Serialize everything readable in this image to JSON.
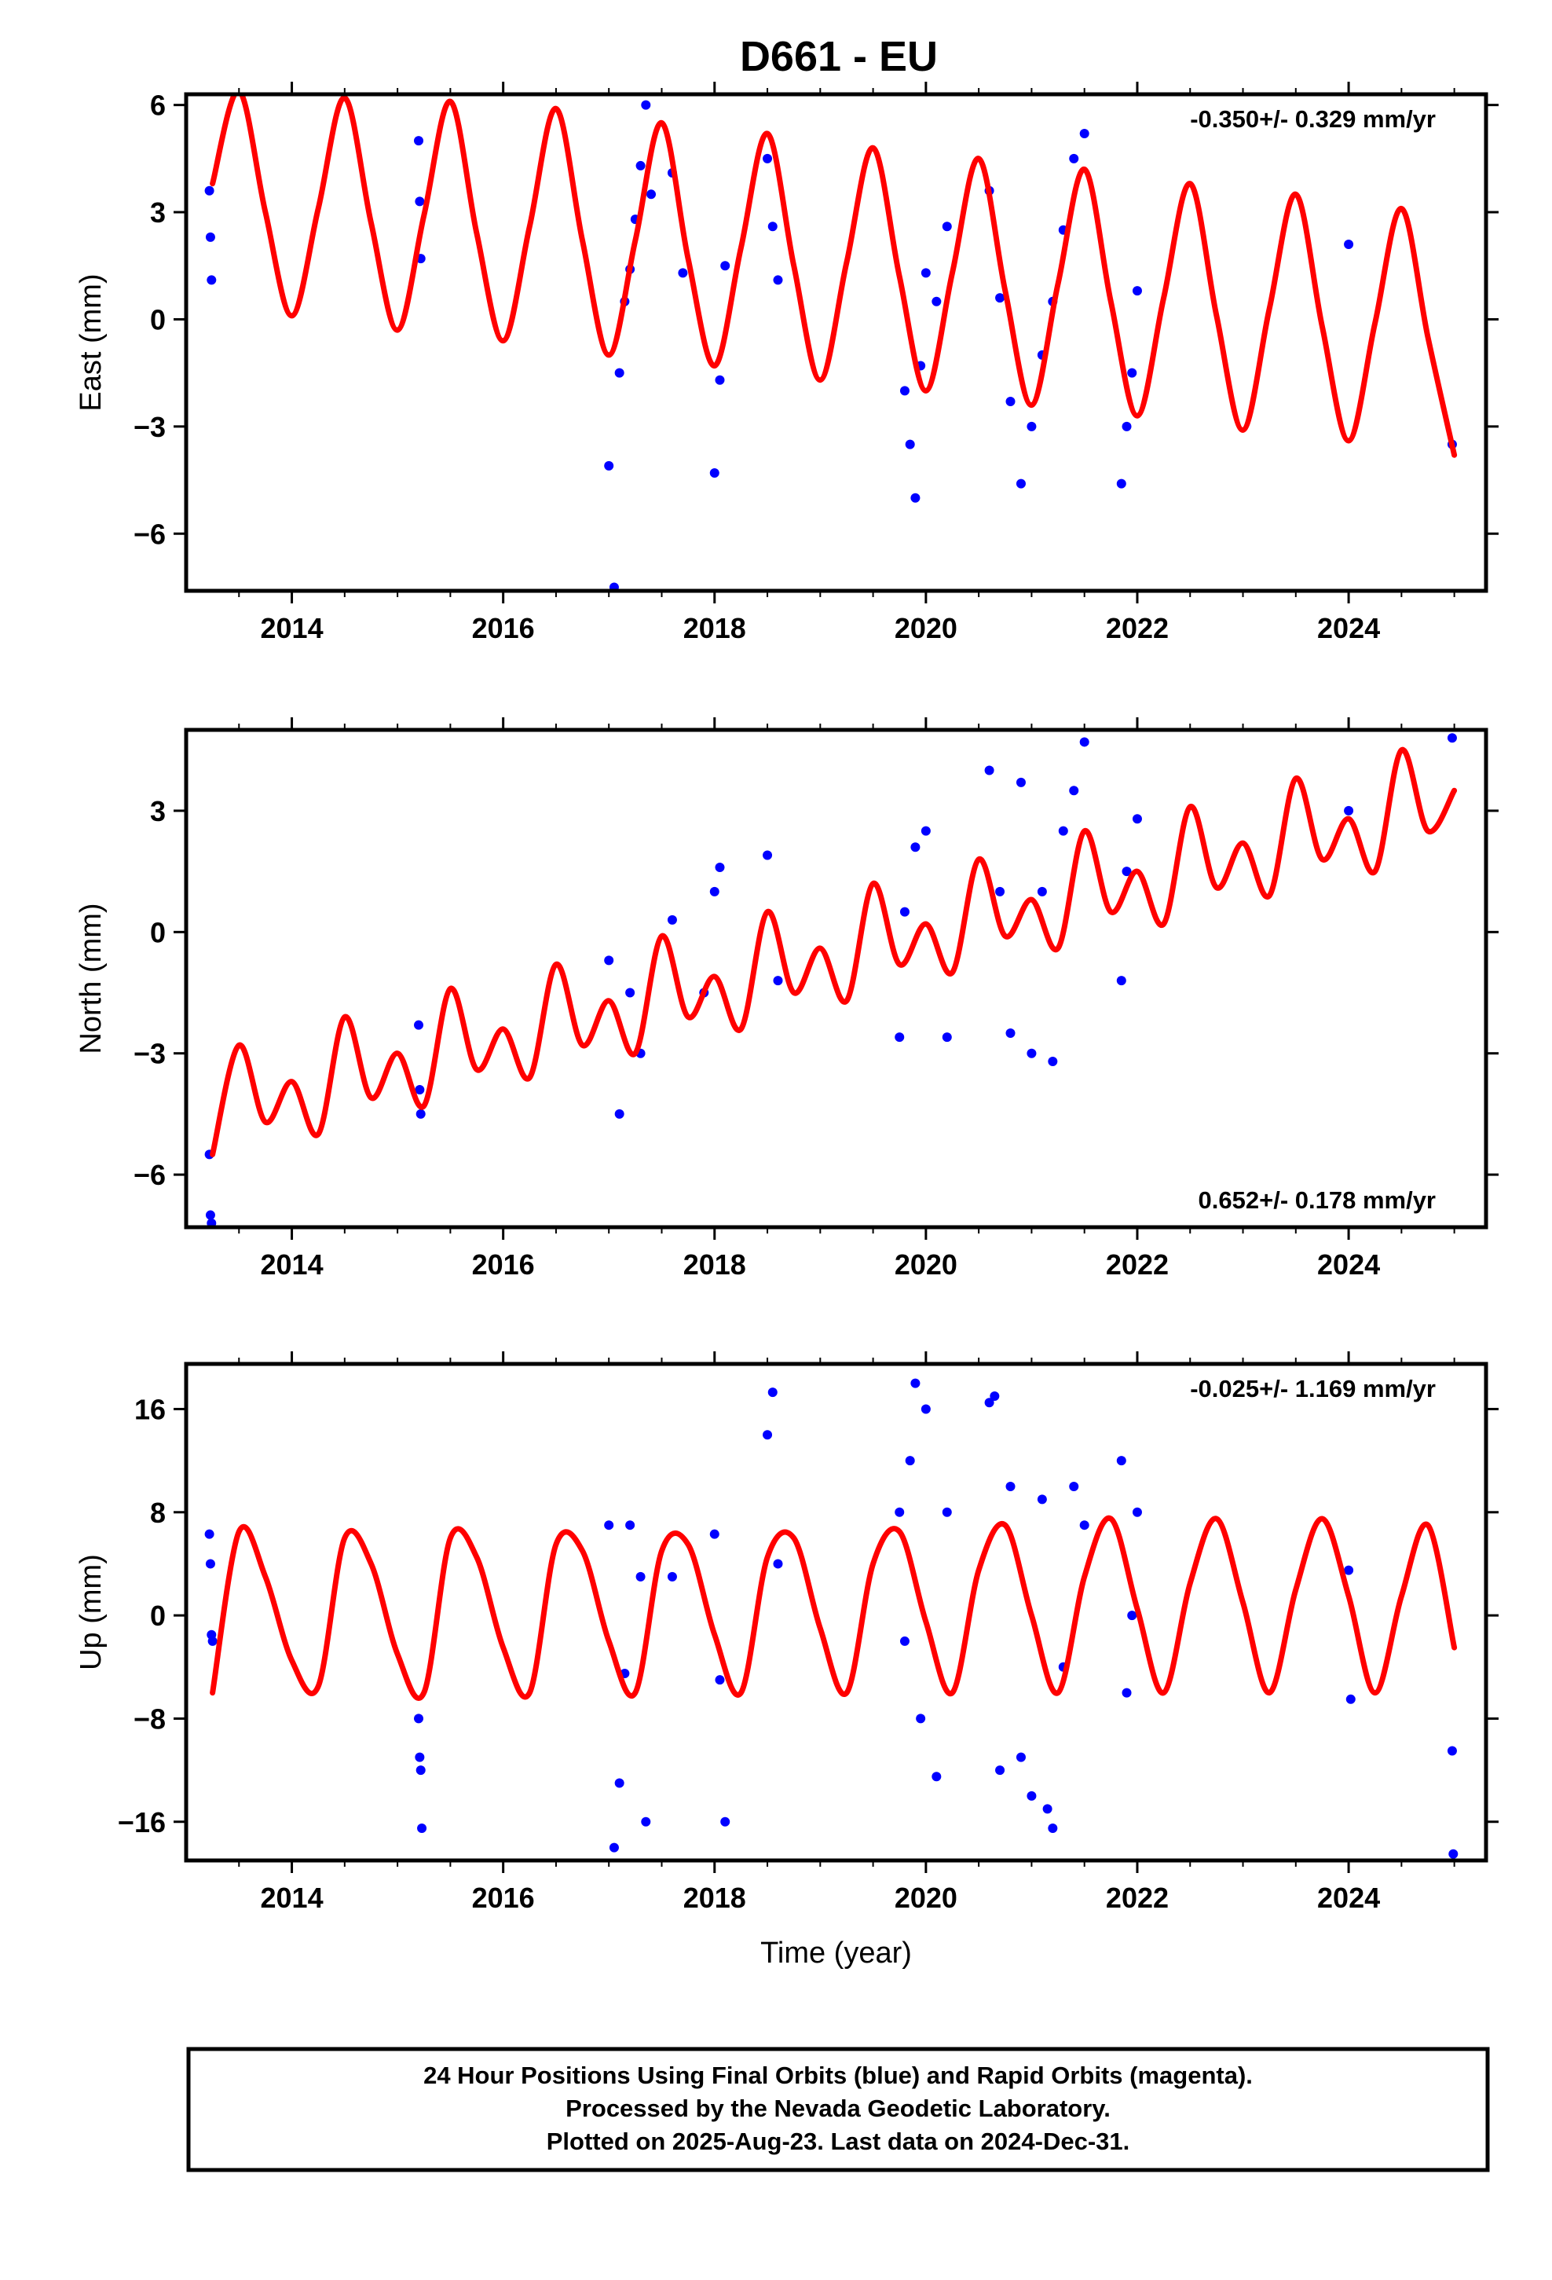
{
  "title": "D661 - EU",
  "colors": {
    "data": "#0000ff",
    "model": "#ff0000",
    "axis": "#000000"
  },
  "footer": {
    "lines": [
      "24 Hour Positions Using Final Orbits (blue) and Rapid Orbits (magenta).",
      "Processed by the Nevada Geodetic Laboratory.",
      "Plotted on 2025-Aug-23. Last data on 2024-Dec-31."
    ]
  },
  "chart_data": [
    {
      "type": "scatter",
      "ylabel": "East (mm)",
      "xlabel": "",
      "xlim": [
        2013.0,
        2025.3
      ],
      "ylim": [
        -7.6,
        6.3
      ],
      "xticks": [
        2014,
        2016,
        2018,
        2020,
        2022,
        2024
      ],
      "xtick_labels": [
        "2014",
        "2016",
        "2018",
        "2020",
        "2022",
        "2024"
      ],
      "yticks": [
        -6,
        -3,
        0,
        3,
        6
      ],
      "ytick_labels": [
        "−6",
        "−3",
        "0",
        "3",
        "6"
      ],
      "rate_text": "-0.350+/- 0.329 mm/yr",
      "rate_position": "top-right",
      "model": {
        "x": [
          2013.25,
          2013.5,
          2013.75,
          2014.0,
          2014.25,
          2014.5,
          2014.75,
          2015.0,
          2015.25,
          2015.5,
          2015.75,
          2016.0,
          2016.25,
          2016.5,
          2016.75,
          2017.0,
          2017.25,
          2017.5,
          2017.75,
          2018.0,
          2018.25,
          2018.5,
          2018.75,
          2019.0,
          2019.25,
          2019.5,
          2019.75,
          2020.0,
          2020.25,
          2020.5,
          2020.75,
          2021.0,
          2021.25,
          2021.5,
          2021.75,
          2022.0,
          2022.25,
          2022.5,
          2022.75,
          2023.0,
          2023.25,
          2023.5,
          2023.75,
          2024.0,
          2024.25,
          2024.5,
          2024.75,
          2025.0
        ],
        "y": [
          3.8,
          6.4,
          3.0,
          0.1,
          3.1,
          6.2,
          2.7,
          -0.3,
          2.9,
          6.1,
          2.4,
          -0.6,
          2.6,
          5.9,
          2.2,
          -1.0,
          2.2,
          5.5,
          1.7,
          -1.3,
          2.0,
          5.2,
          1.5,
          -1.7,
          1.6,
          4.8,
          1.2,
          -2.0,
          1.3,
          4.5,
          0.8,
          -2.4,
          1.0,
          4.2,
          0.5,
          -2.7,
          0.6,
          3.8,
          0.1,
          -3.1,
          0.3,
          3.5,
          -0.2,
          -3.4,
          -0.1,
          3.1,
          -0.5,
          -3.8
        ]
      },
      "points": {
        "x": [
          2013.22,
          2013.23,
          2013.24,
          2015.2,
          2015.21,
          2015.22,
          2017.0,
          2017.05,
          2017.1,
          2017.15,
          2017.2,
          2017.25,
          2017.3,
          2017.35,
          2017.4,
          2017.6,
          2017.7,
          2018.0,
          2018.05,
          2018.1,
          2018.5,
          2018.55,
          2018.6,
          2019.8,
          2019.85,
          2019.9,
          2019.95,
          2020.0,
          2020.1,
          2020.2,
          2020.6,
          2020.7,
          2020.8,
          2020.9,
          2021.0,
          2021.1,
          2021.2,
          2021.3,
          2021.4,
          2021.5,
          2021.85,
          2021.9,
          2021.95,
          2022.0,
          2024.0,
          2024.98
        ],
        "y": [
          3.6,
          2.3,
          1.1,
          5.0,
          3.3,
          1.7,
          -4.1,
          -7.5,
          -1.5,
          0.5,
          1.4,
          2.8,
          4.3,
          6.0,
          3.5,
          4.1,
          1.3,
          -4.3,
          -1.7,
          1.5,
          4.5,
          2.6,
          1.1,
          -2.0,
          -3.5,
          -5.0,
          -1.3,
          1.3,
          0.5,
          2.6,
          3.6,
          0.6,
          -2.3,
          -4.6,
          -3.0,
          -1.0,
          0.5,
          2.5,
          4.5,
          5.2,
          -4.6,
          -3.0,
          -1.5,
          0.8,
          2.1,
          -3.5
        ]
      }
    },
    {
      "type": "scatter",
      "ylabel": "North (mm)",
      "xlabel": "",
      "xlim": [
        2013.0,
        2025.3
      ],
      "ylim": [
        -7.3,
        5.0
      ],
      "xticks": [
        2014,
        2016,
        2018,
        2020,
        2022,
        2024
      ],
      "xtick_labels": [
        "2014",
        "2016",
        "2018",
        "2020",
        "2022",
        "2024"
      ],
      "yticks": [
        -6,
        -3,
        0,
        3
      ],
      "ytick_labels": [
        "−6",
        "−3",
        "0",
        "3"
      ],
      "rate_text": "0.652+/- 0.178 mm/yr",
      "rate_position": "bottom-right",
      "model": {
        "x": [
          2013.25,
          2013.5,
          2013.75,
          2014.0,
          2014.25,
          2014.5,
          2014.75,
          2015.0,
          2015.25,
          2015.5,
          2015.75,
          2016.0,
          2016.25,
          2016.5,
          2016.75,
          2017.0,
          2017.25,
          2017.5,
          2017.75,
          2018.0,
          2018.25,
          2018.5,
          2018.75,
          2019.0,
          2019.25,
          2019.5,
          2019.75,
          2020.0,
          2020.25,
          2020.5,
          2020.75,
          2021.0,
          2021.25,
          2021.5,
          2021.75,
          2022.0,
          2022.25,
          2022.5,
          2022.75,
          2023.0,
          2023.25,
          2023.5,
          2023.75,
          2024.0,
          2024.25,
          2024.5,
          2024.75,
          2025.0
        ],
        "y": [
          -5.5,
          -2.8,
          -4.7,
          -3.7,
          -5.0,
          -2.1,
          -4.1,
          -3.0,
          -4.3,
          -1.4,
          -3.4,
          -2.4,
          -3.6,
          -0.8,
          -2.8,
          -1.7,
          -3.0,
          -0.1,
          -2.1,
          -1.1,
          -2.4,
          0.5,
          -1.5,
          -0.4,
          -1.7,
          1.2,
          -0.8,
          0.2,
          -1.0,
          1.8,
          -0.1,
          0.8,
          -0.4,
          2.5,
          0.5,
          1.5,
          0.2,
          3.1,
          1.1,
          2.2,
          0.9,
          3.8,
          1.8,
          2.8,
          1.5,
          4.5,
          2.5,
          3.5
        ]
      },
      "points": {
        "x": [
          2013.22,
          2013.23,
          2013.24,
          2015.2,
          2015.21,
          2015.22,
          2017.0,
          2017.1,
          2017.2,
          2017.3,
          2017.6,
          2017.9,
          2018.0,
          2018.05,
          2018.5,
          2018.6,
          2019.75,
          2019.8,
          2019.9,
          2020.0,
          2020.2,
          2020.6,
          2020.7,
          2020.8,
          2020.9,
          2021.0,
          2021.1,
          2021.2,
          2021.3,
          2021.4,
          2021.5,
          2021.85,
          2021.9,
          2022.0,
          2024.0,
          2024.98
        ],
        "y": [
          -5.5,
          -7.0,
          -7.2,
          -2.3,
          -3.9,
          -4.5,
          -0.7,
          -4.5,
          -1.5,
          -3.0,
          0.3,
          -1.5,
          1.0,
          1.6,
          1.9,
          -1.2,
          -2.6,
          0.5,
          2.1,
          2.5,
          -2.6,
          4.0,
          1.0,
          -2.5,
          3.7,
          -3.0,
          1.0,
          -3.2,
          2.5,
          3.5,
          4.7,
          -1.2,
          1.5,
          2.8,
          3.0,
          4.8
        ]
      }
    },
    {
      "type": "scatter",
      "ylabel": "Up (mm)",
      "xlabel": "Time (year)",
      "xlim": [
        2013.0,
        2025.3
      ],
      "ylim": [
        -19,
        19.5
      ],
      "xticks": [
        2014,
        2016,
        2018,
        2020,
        2022,
        2024
      ],
      "xtick_labels": [
        "2014",
        "2016",
        "2018",
        "2020",
        "2022",
        "2024"
      ],
      "yticks": [
        -16,
        -8,
        0,
        8,
        16
      ],
      "ytick_labels": [
        "−16",
        "−8",
        "0",
        "8",
        "16"
      ],
      "rate_text": "-0.025+/- 1.169 mm/yr",
      "rate_position": "top-right",
      "model": {
        "x": [
          2013.25,
          2013.5,
          2013.75,
          2014.0,
          2014.25,
          2014.5,
          2014.75,
          2015.0,
          2015.25,
          2015.5,
          2015.75,
          2016.0,
          2016.25,
          2016.5,
          2016.75,
          2017.0,
          2017.25,
          2017.5,
          2017.75,
          2018.0,
          2018.25,
          2018.5,
          2018.75,
          2019.0,
          2019.25,
          2019.5,
          2019.75,
          2020.0,
          2020.25,
          2020.5,
          2020.75,
          2021.0,
          2021.25,
          2021.5,
          2021.75,
          2022.0,
          2022.25,
          2022.5,
          2022.75,
          2023.0,
          2023.25,
          2023.5,
          2023.75,
          2024.0,
          2024.25,
          2024.5,
          2024.75,
          2025.0
        ],
        "y": [
          -6.0,
          6.5,
          3.0,
          -3.5,
          -5.5,
          6.0,
          4.0,
          -3.0,
          -6.0,
          6.0,
          4.5,
          -2.5,
          -6.0,
          5.5,
          5.0,
          -2.0,
          -6.0,
          5.0,
          5.5,
          -1.5,
          -6.0,
          4.5,
          6.0,
          -1.0,
          -6.0,
          4.0,
          6.5,
          -0.5,
          -6.0,
          3.5,
          7.0,
          0.0,
          -6.0,
          3.0,
          7.5,
          0.5,
          -6.0,
          2.5,
          7.5,
          1.0,
          -6.0,
          2.0,
          7.5,
          1.5,
          -6.0,
          1.5,
          7.0,
          -2.5
        ]
      },
      "points": {
        "x": [
          2013.22,
          2013.23,
          2013.24,
          2013.25,
          2015.2,
          2015.21,
          2015.22,
          2015.23,
          2017.0,
          2017.05,
          2017.1,
          2017.15,
          2017.2,
          2017.3,
          2017.35,
          2017.6,
          2018.0,
          2018.05,
          2018.1,
          2018.5,
          2018.55,
          2018.6,
          2019.75,
          2019.8,
          2019.85,
          2019.9,
          2019.95,
          2020.0,
          2020.1,
          2020.2,
          2020.6,
          2020.65,
          2020.7,
          2020.8,
          2020.9,
          2021.0,
          2021.1,
          2021.15,
          2021.2,
          2021.3,
          2021.4,
          2021.5,
          2021.85,
          2021.9,
          2021.95,
          2022.0,
          2024.0,
          2024.02,
          2024.98,
          2024.99
        ],
        "y": [
          6.3,
          4.0,
          -1.5,
          -2.0,
          -8.0,
          -11.0,
          -12.0,
          -16.5,
          7.0,
          -18.0,
          -13.0,
          -4.5,
          7.0,
          3.0,
          -16.0,
          3.0,
          6.3,
          -5.0,
          -16.0,
          14.0,
          17.3,
          4.0,
          8.0,
          -2.0,
          12.0,
          18.0,
          -8.0,
          16.0,
          -12.5,
          8.0,
          16.5,
          17.0,
          -12.0,
          10.0,
          -11.0,
          -14.0,
          9.0,
          -15.0,
          -16.5,
          -4.0,
          10.0,
          7.0,
          12.0,
          -6.0,
          0.0,
          8.0,
          3.5,
          -6.5,
          -10.5,
          -18.5
        ]
      }
    }
  ]
}
